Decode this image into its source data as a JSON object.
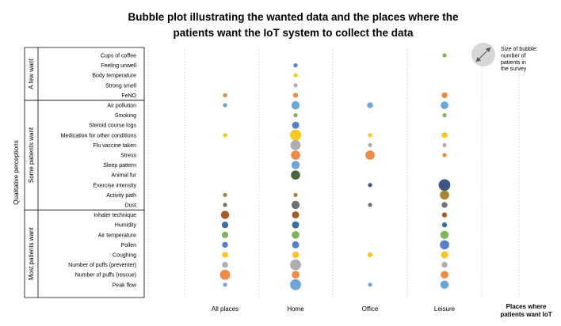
{
  "chart_data": {
    "type": "bubble",
    "title": "Bubble plot illustrating the wanted data and the places where the patients want the IoT system to collect the data",
    "xlabel": "Places where patients want IoT",
    "ylabel": "Qualitative perceptions",
    "size_legend": "Size of bubble: number of patients in the survey",
    "x_categories": [
      "All places",
      "Home",
      "Office",
      "Leisure"
    ],
    "groups": [
      {
        "label": "A few  want",
        "items": [
          "Cups of coffee",
          "Feeling unwell",
          "Body temperature",
          "Strong smell",
          "FeNO"
        ]
      },
      {
        "label": "Some  patients want",
        "items": [
          "Air pollution",
          "Smoking",
          "Steroid course logs",
          "Medication for other conditions",
          "Flu vaccine taken",
          "Stress",
          "Sleep pattern",
          "Animal fur",
          "Exercise intensity",
          "Activity path",
          "Dust"
        ]
      },
      {
        "label": "Most  patients want",
        "items": [
          "Inhaler technique",
          "Humidity",
          "Air temperature",
          "Pollen",
          "Coughing",
          "Number of puffs (preventer)",
          "Number of puffs (rescue)",
          "Peak flow"
        ]
      }
    ],
    "row_colors": {
      "Cups of coffee": "#70ad47",
      "Feeling unwell": "#4472c4",
      "Body temperature": "#ffc000",
      "Strong smell": "#a5a5a5",
      "FeNO": "#ed7d31",
      "Air pollution": "#5b9bd5",
      "Smoking": "#70ad47",
      "Steroid course logs": "#4472c4",
      "Medication for other conditions": "#ffc000",
      "Flu vaccine taken": "#a5a5a5",
      "Stress": "#ed7d31",
      "Sleep pattern": "#5b9bd5",
      "Animal fur": "#375623",
      "Exercise intensity": "#264478",
      "Activity path": "#9c7a19",
      "Dust": "#636363",
      "Inhaler technique": "#9e480e",
      "Humidity": "#255e91",
      "Air temperature": "#70ad47",
      "Pollen": "#4472c4",
      "Coughing": "#ffc000",
      "Number of puffs (preventer)": "#a5a5a5",
      "Number of puffs (rescue)": "#ed7d31",
      "Peak flow": "#5b9bd5"
    },
    "points": [
      {
        "row": "Cups of coffee",
        "place": "Leisure",
        "size": 1
      },
      {
        "row": "Feeling unwell",
        "place": "Home",
        "size": 1
      },
      {
        "row": "Body temperature",
        "place": "Home",
        "size": 1
      },
      {
        "row": "Strong smell",
        "place": "Home",
        "size": 1
      },
      {
        "row": "FeNO",
        "place": "All places",
        "size": 1
      },
      {
        "row": "FeNO",
        "place": "Home",
        "size": 1.5
      },
      {
        "row": "FeNO",
        "place": "Leisure",
        "size": 2
      },
      {
        "row": "Air pollution",
        "place": "All places",
        "size": 1
      },
      {
        "row": "Air pollution",
        "place": "Home",
        "size": 4
      },
      {
        "row": "Air pollution",
        "place": "Office",
        "size": 2
      },
      {
        "row": "Air pollution",
        "place": "Leisure",
        "size": 3.5
      },
      {
        "row": "Smoking",
        "place": "Home",
        "size": 1
      },
      {
        "row": "Smoking",
        "place": "Leisure",
        "size": 1
      },
      {
        "row": "Steroid course logs",
        "place": "Home",
        "size": 3
      },
      {
        "row": "Medication for other conditions",
        "place": "All places",
        "size": 1
      },
      {
        "row": "Medication for other conditions",
        "place": "Home",
        "size": 7
      },
      {
        "row": "Medication for other conditions",
        "place": "Office",
        "size": 1
      },
      {
        "row": "Medication for other conditions",
        "place": "Leisure",
        "size": 2
      },
      {
        "row": "Flu vaccine taken",
        "place": "Home",
        "size": 6
      },
      {
        "row": "Flu vaccine taken",
        "place": "Office",
        "size": 1
      },
      {
        "row": "Flu vaccine taken",
        "place": "Leisure",
        "size": 1
      },
      {
        "row": "Stress",
        "place": "Home",
        "size": 5
      },
      {
        "row": "Stress",
        "place": "Office",
        "size": 5
      },
      {
        "row": "Stress",
        "place": "Leisure",
        "size": 1
      },
      {
        "row": "Sleep pattern",
        "place": "Home",
        "size": 4
      },
      {
        "row": "Animal fur",
        "place": "Home",
        "size": 5
      },
      {
        "row": "Exercise intensity",
        "place": "Office",
        "size": 1
      },
      {
        "row": "Exercise intensity",
        "place": "Leisure",
        "size": 8
      },
      {
        "row": "Activity path",
        "place": "All places",
        "size": 1
      },
      {
        "row": "Activity path",
        "place": "Home",
        "size": 1
      },
      {
        "row": "Activity path",
        "place": "Leisure",
        "size": 5
      },
      {
        "row": "Dust",
        "place": "All places",
        "size": 1
      },
      {
        "row": "Dust",
        "place": "Home",
        "size": 4
      },
      {
        "row": "Dust",
        "place": "Office",
        "size": 1
      },
      {
        "row": "Dust",
        "place": "Leisure",
        "size": 2
      },
      {
        "row": "Inhaler technique",
        "place": "All places",
        "size": 4
      },
      {
        "row": "Inhaler technique",
        "place": "Home",
        "size": 3
      },
      {
        "row": "Inhaler technique",
        "place": "Leisure",
        "size": 1.5
      },
      {
        "row": "Humidity",
        "place": "All places",
        "size": 2.5
      },
      {
        "row": "Humidity",
        "place": "Home",
        "size": 3
      },
      {
        "row": "Humidity",
        "place": "Leisure",
        "size": 1.5
      },
      {
        "row": "Air temperature",
        "place": "All places",
        "size": 2.5
      },
      {
        "row": "Air temperature",
        "place": "Home",
        "size": 3.5
      },
      {
        "row": "Air temperature",
        "place": "Leisure",
        "size": 4
      },
      {
        "row": "Pollen",
        "place": "All places",
        "size": 2
      },
      {
        "row": "Pollen",
        "place": "Home",
        "size": 3
      },
      {
        "row": "Pollen",
        "place": "Leisure",
        "size": 5
      },
      {
        "row": "Coughing",
        "place": "All places",
        "size": 2
      },
      {
        "row": "Coughing",
        "place": "Home",
        "size": 2.5
      },
      {
        "row": "Coughing",
        "place": "Office",
        "size": 1.5
      },
      {
        "row": "Coughing",
        "place": "Leisure",
        "size": 3
      },
      {
        "row": "Number of puffs (preventer)",
        "place": "All places",
        "size": 2
      },
      {
        "row": "Number of puffs (preventer)",
        "place": "Home",
        "size": 7
      },
      {
        "row": "Number of puffs (preventer)",
        "place": "Leisure",
        "size": 2
      },
      {
        "row": "Number of puffs (rescue)",
        "place": "All places",
        "size": 6
      },
      {
        "row": "Number of puffs (rescue)",
        "place": "Home",
        "size": 3.5
      },
      {
        "row": "Number of puffs (rescue)",
        "place": "Leisure",
        "size": 3.5
      },
      {
        "row": "Peak flow",
        "place": "All places",
        "size": 1
      },
      {
        "row": "Peak flow",
        "place": "Home",
        "size": 7
      },
      {
        "row": "Peak flow",
        "place": "Office",
        "size": 1
      },
      {
        "row": "Peak flow",
        "place": "Leisure",
        "size": 4
      }
    ]
  }
}
